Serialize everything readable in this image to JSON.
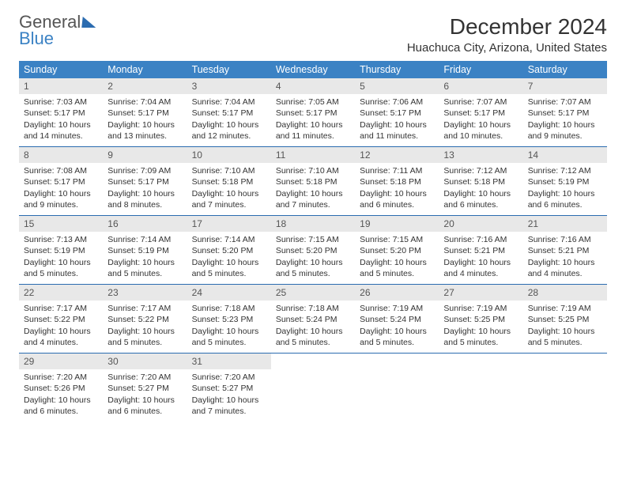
{
  "logo": {
    "text1": "General",
    "text2": "Blue"
  },
  "title": "December 2024",
  "subtitle": "Huachuca City, Arizona, United States",
  "colors": {
    "header_bg": "#3b82c4",
    "header_text": "#ffffff",
    "daynum_bg": "#e8e8e8",
    "week_divider": "#2b6cb0",
    "text": "#333333",
    "logo_gray": "#555555",
    "logo_blue": "#3b82c4"
  },
  "day_headers": [
    "Sunday",
    "Monday",
    "Tuesday",
    "Wednesday",
    "Thursday",
    "Friday",
    "Saturday"
  ],
  "days": [
    {
      "n": 1,
      "sunrise": "7:03 AM",
      "sunset": "5:17 PM",
      "daylight": "10 hours and 14 minutes."
    },
    {
      "n": 2,
      "sunrise": "7:04 AM",
      "sunset": "5:17 PM",
      "daylight": "10 hours and 13 minutes."
    },
    {
      "n": 3,
      "sunrise": "7:04 AM",
      "sunset": "5:17 PM",
      "daylight": "10 hours and 12 minutes."
    },
    {
      "n": 4,
      "sunrise": "7:05 AM",
      "sunset": "5:17 PM",
      "daylight": "10 hours and 11 minutes."
    },
    {
      "n": 5,
      "sunrise": "7:06 AM",
      "sunset": "5:17 PM",
      "daylight": "10 hours and 11 minutes."
    },
    {
      "n": 6,
      "sunrise": "7:07 AM",
      "sunset": "5:17 PM",
      "daylight": "10 hours and 10 minutes."
    },
    {
      "n": 7,
      "sunrise": "7:07 AM",
      "sunset": "5:17 PM",
      "daylight": "10 hours and 9 minutes."
    },
    {
      "n": 8,
      "sunrise": "7:08 AM",
      "sunset": "5:17 PM",
      "daylight": "10 hours and 9 minutes."
    },
    {
      "n": 9,
      "sunrise": "7:09 AM",
      "sunset": "5:17 PM",
      "daylight": "10 hours and 8 minutes."
    },
    {
      "n": 10,
      "sunrise": "7:10 AM",
      "sunset": "5:18 PM",
      "daylight": "10 hours and 7 minutes."
    },
    {
      "n": 11,
      "sunrise": "7:10 AM",
      "sunset": "5:18 PM",
      "daylight": "10 hours and 7 minutes."
    },
    {
      "n": 12,
      "sunrise": "7:11 AM",
      "sunset": "5:18 PM",
      "daylight": "10 hours and 6 minutes."
    },
    {
      "n": 13,
      "sunrise": "7:12 AM",
      "sunset": "5:18 PM",
      "daylight": "10 hours and 6 minutes."
    },
    {
      "n": 14,
      "sunrise": "7:12 AM",
      "sunset": "5:19 PM",
      "daylight": "10 hours and 6 minutes."
    },
    {
      "n": 15,
      "sunrise": "7:13 AM",
      "sunset": "5:19 PM",
      "daylight": "10 hours and 5 minutes."
    },
    {
      "n": 16,
      "sunrise": "7:14 AM",
      "sunset": "5:19 PM",
      "daylight": "10 hours and 5 minutes."
    },
    {
      "n": 17,
      "sunrise": "7:14 AM",
      "sunset": "5:20 PM",
      "daylight": "10 hours and 5 minutes."
    },
    {
      "n": 18,
      "sunrise": "7:15 AM",
      "sunset": "5:20 PM",
      "daylight": "10 hours and 5 minutes."
    },
    {
      "n": 19,
      "sunrise": "7:15 AM",
      "sunset": "5:20 PM",
      "daylight": "10 hours and 5 minutes."
    },
    {
      "n": 20,
      "sunrise": "7:16 AM",
      "sunset": "5:21 PM",
      "daylight": "10 hours and 4 minutes."
    },
    {
      "n": 21,
      "sunrise": "7:16 AM",
      "sunset": "5:21 PM",
      "daylight": "10 hours and 4 minutes."
    },
    {
      "n": 22,
      "sunrise": "7:17 AM",
      "sunset": "5:22 PM",
      "daylight": "10 hours and 4 minutes."
    },
    {
      "n": 23,
      "sunrise": "7:17 AM",
      "sunset": "5:22 PM",
      "daylight": "10 hours and 5 minutes."
    },
    {
      "n": 24,
      "sunrise": "7:18 AM",
      "sunset": "5:23 PM",
      "daylight": "10 hours and 5 minutes."
    },
    {
      "n": 25,
      "sunrise": "7:18 AM",
      "sunset": "5:24 PM",
      "daylight": "10 hours and 5 minutes."
    },
    {
      "n": 26,
      "sunrise": "7:19 AM",
      "sunset": "5:24 PM",
      "daylight": "10 hours and 5 minutes."
    },
    {
      "n": 27,
      "sunrise": "7:19 AM",
      "sunset": "5:25 PM",
      "daylight": "10 hours and 5 minutes."
    },
    {
      "n": 28,
      "sunrise": "7:19 AM",
      "sunset": "5:25 PM",
      "daylight": "10 hours and 5 minutes."
    },
    {
      "n": 29,
      "sunrise": "7:20 AM",
      "sunset": "5:26 PM",
      "daylight": "10 hours and 6 minutes."
    },
    {
      "n": 30,
      "sunrise": "7:20 AM",
      "sunset": "5:27 PM",
      "daylight": "10 hours and 6 minutes."
    },
    {
      "n": 31,
      "sunrise": "7:20 AM",
      "sunset": "5:27 PM",
      "daylight": "10 hours and 7 minutes."
    }
  ],
  "labels": {
    "sunrise_prefix": "Sunrise: ",
    "sunset_prefix": "Sunset: ",
    "daylight_prefix": "Daylight: "
  },
  "grid": {
    "cols": 7,
    "start_offset": 0,
    "total_cells": 35
  }
}
